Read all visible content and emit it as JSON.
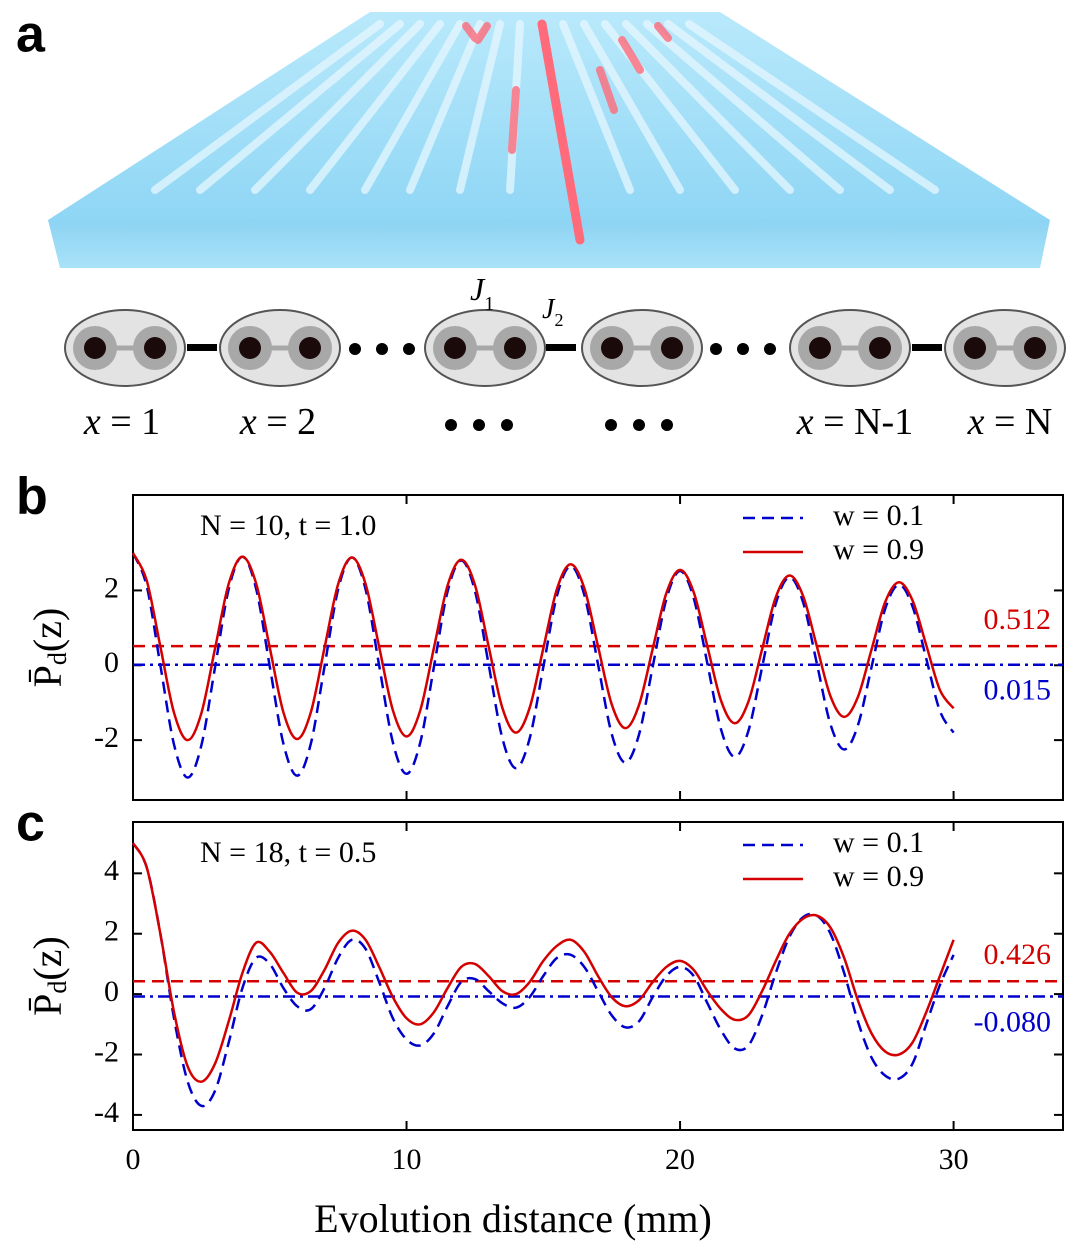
{
  "diagram": {
    "panel_label": "a",
    "couplings": [
      {
        "symbol": "J",
        "index": "1"
      },
      {
        "symbol": "J",
        "index": "2"
      }
    ],
    "site_labels": [
      {
        "var": "x",
        "eq": "= 1"
      },
      {
        "var": "x",
        "eq": "= 2"
      },
      {
        "var": "x",
        "eq": "= N-1"
      },
      {
        "var": "x",
        "eq": "= N"
      }
    ]
  },
  "chart_data": [
    {
      "type": "line",
      "panel_label": "b",
      "annotation": "N = 10, t = 1.0",
      "ylabel": [
        "P̄",
        "d",
        "(z)"
      ],
      "x": [
        0,
        0.5,
        1,
        1.5,
        2,
        2.5,
        3,
        3.5,
        4,
        4.5,
        5,
        5.5,
        6,
        6.5,
        7,
        7.5,
        8,
        8.5,
        9,
        9.5,
        10,
        10.5,
        11,
        11.5,
        12,
        12.5,
        13,
        13.5,
        14,
        14.5,
        15,
        15.5,
        16,
        16.5,
        17,
        17.5,
        18,
        18.5,
        19,
        19.5,
        20,
        20.5,
        21,
        21.5,
        22,
        22.5,
        23,
        23.5,
        24,
        24.5,
        25,
        25.5,
        26,
        26.5,
        27,
        27.5,
        28,
        28.5,
        29,
        29.5,
        30
      ],
      "xlim": [
        0,
        34
      ],
      "xticks": [
        0,
        10,
        20,
        30
      ],
      "xtick_labels": false,
      "ylim": [
        -3.6,
        4.55
      ],
      "yticks": [
        -2,
        0,
        2
      ],
      "legend": "upper right",
      "series": [
        {
          "name": "w = 0.1",
          "color": "#0000cc",
          "style": "dashed",
          "values": [
            3.0,
            2.12,
            0,
            -2.12,
            -3.0,
            -2.14,
            -0.05,
            2.04,
            2.9,
            2.05,
            -0.03,
            -2.1,
            -2.95,
            -2.1,
            -0.04,
            2.03,
            2.88,
            2.04,
            -0.01,
            -2.06,
            -2.9,
            -2.07,
            -0.05,
            1.97,
            2.8,
            1.99,
            0.03,
            -1.94,
            -2.75,
            -1.96,
            -0.05,
            1.86,
            2.65,
            1.88,
            0.03,
            -1.83,
            -2.6,
            -1.85,
            -0.04,
            1.77,
            2.52,
            1.79,
            0.04,
            -1.72,
            -2.45,
            -1.75,
            -0.05,
            1.65,
            2.35,
            1.68,
            0.05,
            -1.58,
            -2.25,
            -1.61,
            -0.05,
            1.51,
            2.15,
            1.57,
            0.18,
            -1.22,
            -1.8
          ]
        },
        {
          "name": "w = 0.9",
          "color": "#d40000",
          "style": "solid",
          "values": [
            3.0,
            2.27,
            0.5,
            -1.27,
            -2.0,
            -1.28,
            0.45,
            2.18,
            2.9,
            2.19,
            0.47,
            -1.26,
            -1.97,
            -1.26,
            0.46,
            2.17,
            2.88,
            2.18,
            0.49,
            -1.2,
            -1.9,
            -1.21,
            0.46,
            2.13,
            2.82,
            2.15,
            0.51,
            -1.13,
            -1.8,
            -1.14,
            0.45,
            2.04,
            2.7,
            2.06,
            0.51,
            -1.04,
            -1.68,
            -1.06,
            0.44,
            1.93,
            2.55,
            1.95,
            0.5,
            -0.95,
            -1.55,
            -0.97,
            0.43,
            1.82,
            2.4,
            1.85,
            0.51,
            -0.83,
            -1.38,
            -0.85,
            0.42,
            1.69,
            2.22,
            1.73,
            0.54,
            -0.66,
            -1.15
          ]
        }
      ],
      "reference_lines": [
        {
          "value": 0.512,
          "color": "#d40000",
          "style": "dashed"
        },
        {
          "value": 0.015,
          "color": "#0000cc",
          "style": "dashdot"
        }
      ]
    },
    {
      "type": "line",
      "panel_label": "c",
      "annotation": "N = 18, t = 0.5",
      "ylabel": [
        "P̄",
        "d",
        "(z)"
      ],
      "xlabel": "Evolution distance (mm)",
      "x": [
        0,
        0.5,
        1,
        1.5,
        2,
        2.5,
        3,
        3.5,
        4,
        4.5,
        5,
        5.5,
        6,
        6.5,
        7,
        7.5,
        8,
        8.5,
        9,
        9.5,
        10,
        10.5,
        11,
        11.5,
        12,
        12.5,
        13,
        13.5,
        14,
        14.5,
        15,
        15.5,
        16,
        16.5,
        17,
        17.5,
        18,
        18.5,
        19,
        19.5,
        20,
        20.5,
        21,
        21.5,
        22,
        22.5,
        23,
        23.5,
        24,
        24.5,
        25,
        25.5,
        26,
        26.5,
        27,
        27.5,
        28,
        28.5,
        29,
        29.5,
        30
      ],
      "xlim": [
        0,
        34
      ],
      "xticks": [
        0,
        10,
        20,
        30
      ],
      "xtick_labels": true,
      "ylim": [
        -4.5,
        5.7
      ],
      "yticks": [
        -4,
        -2,
        0,
        2,
        4
      ],
      "legend": "upper right",
      "series": [
        {
          "name": "w = 0.1",
          "color": "#0000cc",
          "style": "dashed",
          "values": [
            5.0,
            4.2,
            2.0,
            -0.8,
            -2.9,
            -3.7,
            -3.2,
            -1.6,
            0.2,
            1.2,
            1.0,
            0.2,
            -0.4,
            -0.5,
            0.2,
            1.2,
            1.8,
            1.5,
            0.4,
            -0.8,
            -1.5,
            -1.7,
            -1.3,
            -0.4,
            0.4,
            0.5,
            0.1,
            -0.3,
            -0.45,
            -0.1,
            0.6,
            1.2,
            1.3,
            0.9,
            0.1,
            -0.7,
            -1.1,
            -0.9,
            -0.1,
            0.6,
            0.9,
            0.6,
            -0.3,
            -1.2,
            -1.8,
            -1.7,
            -0.7,
            0.7,
            1.9,
            2.55,
            2.6,
            2.0,
            0.7,
            -0.9,
            -2.1,
            -2.7,
            -2.8,
            -2.3,
            -1.0,
            0.3,
            1.3
          ]
        },
        {
          "name": "w = 0.9",
          "color": "#d40000",
          "style": "solid",
          "values": [
            5.0,
            4.2,
            2.0,
            -0.6,
            -2.4,
            -2.9,
            -2.3,
            -0.9,
            0.7,
            1.7,
            1.4,
            0.7,
            0.05,
            0.1,
            0.8,
            1.7,
            2.1,
            1.8,
            0.9,
            -0.1,
            -0.8,
            -1.0,
            -0.6,
            0.2,
            0.9,
            1.0,
            0.6,
            0.1,
            0.0,
            0.4,
            1.1,
            1.6,
            1.8,
            1.4,
            0.6,
            -0.1,
            -0.4,
            -0.2,
            0.4,
            0.9,
            1.1,
            0.8,
            0.1,
            -0.5,
            -0.85,
            -0.7,
            0.1,
            1.1,
            2.0,
            2.5,
            2.6,
            2.2,
            1.2,
            -0.2,
            -1.3,
            -1.9,
            -2.0,
            -1.6,
            -0.6,
            0.6,
            1.8
          ]
        }
      ],
      "reference_lines": [
        {
          "value": 0.426,
          "color": "#d40000",
          "style": "dashed"
        },
        {
          "value": -0.08,
          "label": "-0.080",
          "color": "#0000cc",
          "style": "dashdot"
        }
      ]
    }
  ]
}
